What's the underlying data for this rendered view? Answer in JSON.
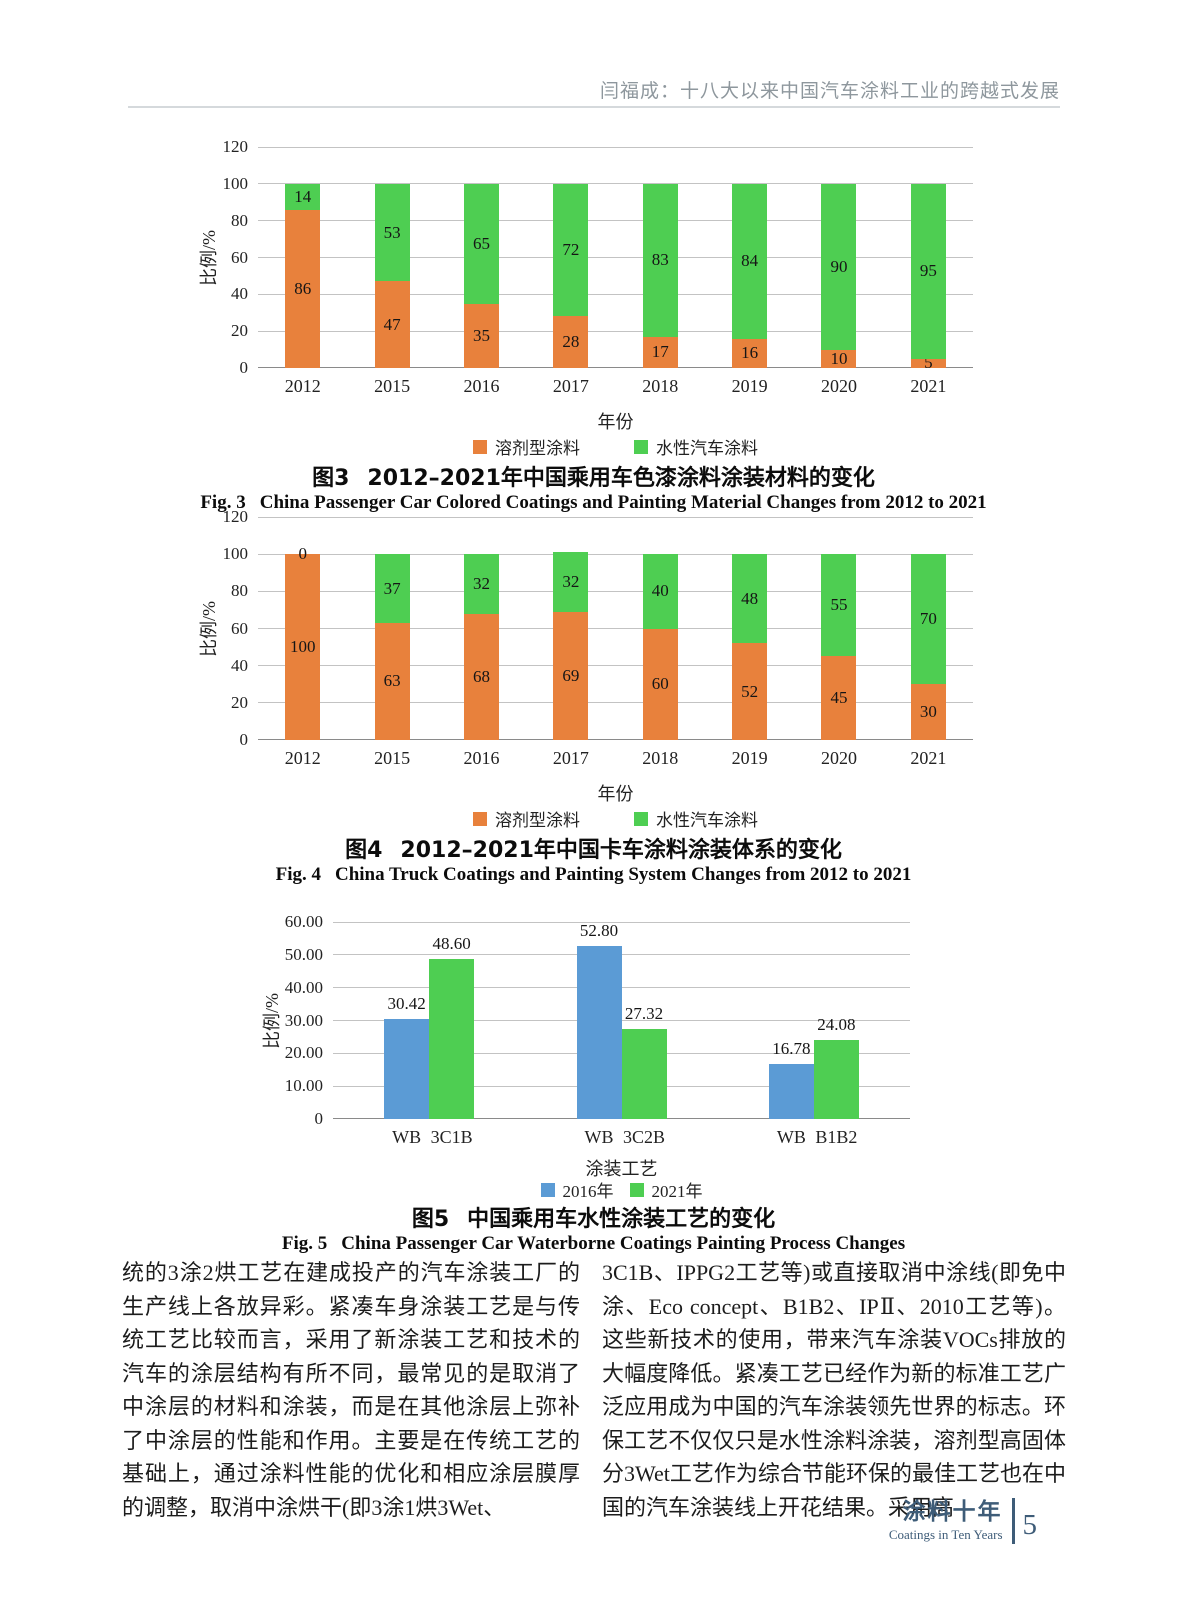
{
  "header": {
    "running_title": "闫福成：十八大以来中国汽车涂料工业的跨越式发展"
  },
  "chart_data": [
    {
      "id": "fig3",
      "type": "bar",
      "variant": "stacked",
      "title_zh_label": "图3",
      "title_zh": "2012–2021年中国乘用车色漆涂料涂装材料的变化",
      "title_en_label": "Fig. 3",
      "title_en": "China Passenger Car Colored Coatings and Painting Material Changes from 2012 to 2021",
      "xlabel": "年份",
      "ylabel": "比例/%",
      "ylim": [
        0,
        120
      ],
      "yticks": [
        0,
        20,
        40,
        60,
        80,
        100,
        120
      ],
      "grid": true,
      "legend_position": "bottom",
      "categories": [
        "2012",
        "2015",
        "2016",
        "2017",
        "2018",
        "2019",
        "2020",
        "2021"
      ],
      "series": [
        {
          "name": "溶剂型涂料",
          "color": "#E8813C",
          "values": [
            86,
            47,
            35,
            28,
            17,
            16,
            10,
            5
          ]
        },
        {
          "name": "水性汽车涂料",
          "color": "#4ECE52",
          "values": [
            14,
            53,
            65,
            72,
            83,
            84,
            90,
            95
          ]
        }
      ]
    },
    {
      "id": "fig4",
      "type": "bar",
      "variant": "stacked",
      "title_zh_label": "图4",
      "title_zh": "2012–2021年中国卡车涂料涂装体系的变化",
      "title_en_label": "Fig. 4",
      "title_en": "China Truck Coatings and Painting System Changes from 2012 to 2021",
      "xlabel": "年份",
      "ylabel": "比例/%",
      "ylim": [
        0,
        120
      ],
      "yticks": [
        0,
        20,
        40,
        60,
        80,
        100,
        120
      ],
      "grid": true,
      "legend_position": "bottom",
      "categories": [
        "2012",
        "2015",
        "2016",
        "2017",
        "2018",
        "2019",
        "2020",
        "2021"
      ],
      "series": [
        {
          "name": "溶剂型涂料",
          "color": "#E8813C",
          "values": [
            100,
            63,
            68,
            69,
            60,
            52,
            45,
            30
          ]
        },
        {
          "name": "水性汽车涂料",
          "color": "#4ECE52",
          "values": [
            0,
            37,
            32,
            32,
            40,
            48,
            55,
            70
          ]
        }
      ]
    },
    {
      "id": "fig5",
      "type": "bar",
      "variant": "grouped",
      "title_zh_label": "图5",
      "title_zh": "中国乘用车水性涂装工艺的变化",
      "title_en_label": "Fig. 5",
      "title_en": "China Passenger Car Waterborne Coatings Painting Process Changes",
      "xlabel": "涂装工艺",
      "ylabel": "比例/%",
      "ylim": [
        0,
        60
      ],
      "yticks": [
        0,
        10,
        20,
        30,
        40,
        50,
        60
      ],
      "ytick_labels": [
        "0",
        "10.00",
        "20.00",
        "30.00",
        "40.00",
        "50.00",
        "60.00"
      ],
      "grid": true,
      "legend_position": "bottom",
      "legend": [
        {
          "name": "2016年",
          "color": "#5B9BD5"
        },
        {
          "name": "2021年",
          "color": "#4ECE52"
        }
      ],
      "groups": [
        {
          "bars": [
            {
              "label": "WB",
              "series": "2016年",
              "color": "#5B9BD5",
              "value": 30.42,
              "value_label": "30.42"
            },
            {
              "label": "3C1B",
              "series": "2021年",
              "color": "#4ECE52",
              "value": 48.6,
              "value_label": "48.60"
            }
          ]
        },
        {
          "bars": [
            {
              "label": "WB",
              "series": "2016年",
              "color": "#5B9BD5",
              "value": 52.8,
              "value_label": "52.80"
            },
            {
              "label": "3C2B",
              "series": "2021年",
              "color": "#4ECE52",
              "value": 27.32,
              "value_label": "27.32"
            }
          ]
        },
        {
          "bars": [
            {
              "label": "WB",
              "series": "2016年",
              "color": "#5B9BD5",
              "value": 16.78,
              "value_label": "16.78"
            },
            {
              "label": "B1B2",
              "series": "2021年",
              "color": "#4ECE52",
              "value": 24.08,
              "value_label": "24.08"
            }
          ]
        }
      ]
    }
  ],
  "body": {
    "left_column": "统的3涂2烘工艺在建成投产的汽车涂装工厂的生产线上各放异彩。紧凑车身涂装工艺是与传统工艺比较而言，采用了新涂装工艺和技术的汽车的涂层结构有所不同，最常见的是取消了中涂层的材料和涂装，而是在其他涂层上弥补了中涂层的性能和作用。主要是在传统工艺的基础上，通过涂料性能的优化和相应涂层膜厚的调整，取消中涂烘干(即3涂1烘3Wet、",
    "right_column": "3C1B、IPPG2工艺等)或直接取消中涂线(即免中涂、Eco concept、B1B2、IPⅡ、2010工艺等)。这些新技术的使用，带来汽车涂装VOCs排放的大幅度降低。紧凑工艺已经作为新的标准工艺广泛应用成为中国的汽车涂装领先世界的标志。环保工艺不仅仅只是水性涂料涂装，溶剂型高固体分3Wet工艺作为综合节能环保的最佳工艺也在中国的汽车涂装线上开花结果。采用高"
  },
  "footer": {
    "brand_zh": "涂料十年",
    "brand_en": "Coatings in Ten Years",
    "page_number": "5"
  }
}
